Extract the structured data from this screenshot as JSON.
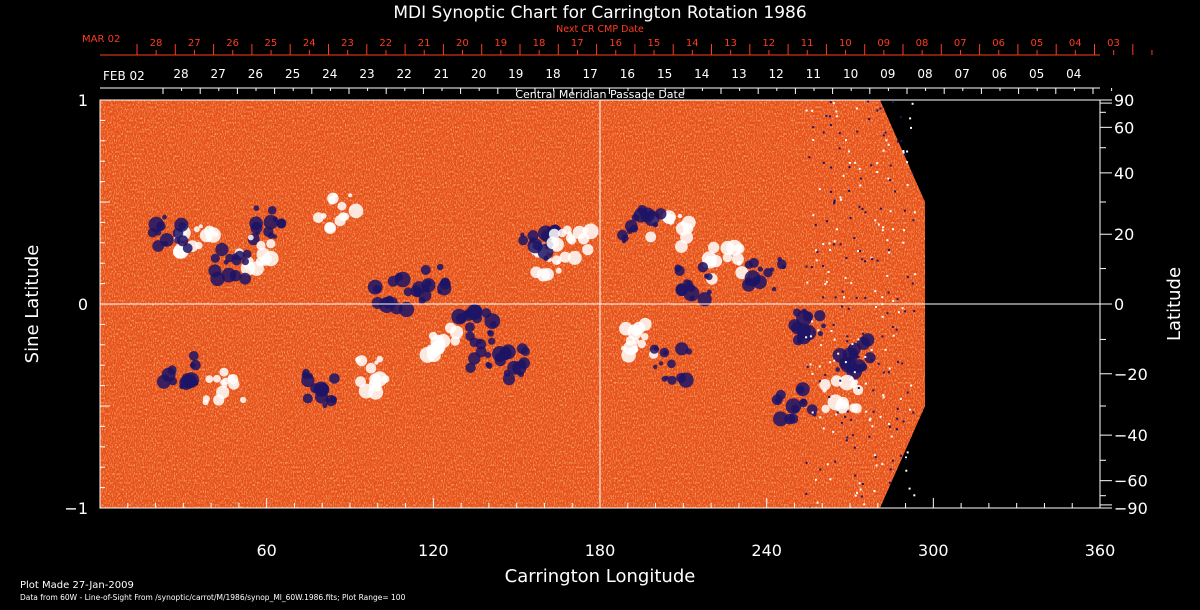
{
  "chart_data": {
    "type": "heatmap",
    "title": "MDI Synoptic Chart for Carrington Rotation 1986",
    "xlabel": "Carrington Longitude",
    "ylabel_left": "Sine Latitude",
    "ylabel_right": "Latitude",
    "xlim": [
      0,
      360
    ],
    "ylim": [
      -1,
      1
    ],
    "x_ticks": [
      60,
      120,
      180,
      240,
      300,
      360
    ],
    "y_left_ticks": [
      {
        "value": 1,
        "label": "1"
      },
      {
        "value": 0,
        "label": "0"
      },
      {
        "value": -1,
        "label": "−1"
      }
    ],
    "y_right_ticks": [
      90,
      60,
      40,
      20,
      0,
      -20,
      -40,
      -60,
      -90
    ],
    "reference_lines": {
      "longitude": 180,
      "sine_latitude": 0
    },
    "top_axis_red": {
      "label": "Next CR CMP Date",
      "first_label": "MAR 02",
      "day_labels": [
        "28",
        "27",
        "26",
        "25",
        "24",
        "23",
        "22",
        "21",
        "20",
        "19",
        "18",
        "17",
        "16",
        "15",
        "14",
        "13",
        "12",
        "11",
        "10",
        "09",
        "08",
        "07",
        "06",
        "05",
        "04",
        "03"
      ]
    },
    "top_axis_white": {
      "label": "Central Meridian Passage Date",
      "first_label": "FEB 02",
      "day_labels": [
        "28",
        "27",
        "26",
        "25",
        "24",
        "23",
        "22",
        "21",
        "20",
        "19",
        "18",
        "17",
        "16",
        "15",
        "14",
        "13",
        "12",
        "11",
        "10",
        "09",
        "08",
        "07",
        "06",
        "05",
        "04"
      ]
    },
    "data_coverage_end_longitude": 297,
    "colors": {
      "background": "#000000",
      "field_base": "#e8501a",
      "positive_polarity": "#ffffff",
      "negative_polarity": "#1c1466",
      "red_axis": "#ff3b1f",
      "axis": "#ffffff"
    },
    "footer": {
      "plot_made": "Plot Made 27-Jan-2009",
      "source": "Data from 60W - Line-of-Sight From /synoptic/carrot/M/1986/synop_Ml_60W.1986.fits; Plot Range= 100"
    }
  }
}
